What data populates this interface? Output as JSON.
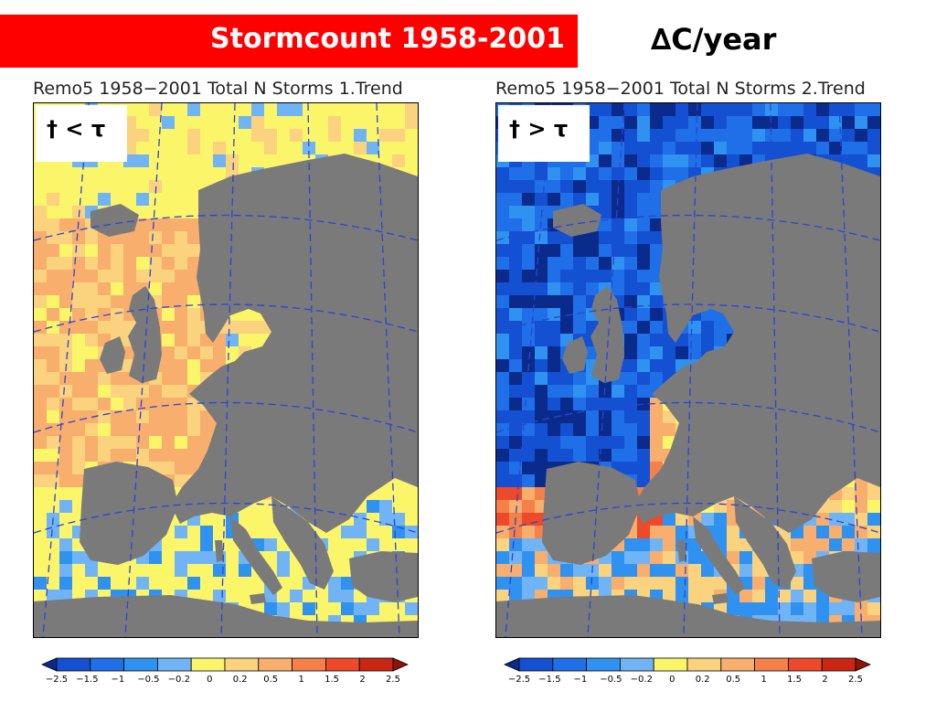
{
  "slide": {
    "title": "Stormcount 1958-2001",
    "unit": "∆C/year",
    "title_bg_color": "#ff0000"
  },
  "panels": [
    {
      "title": "Remo5  1958−2001  Total N Storms  1.Trend",
      "label": "† < τ",
      "dominant_trend": "positive-weak"
    },
    {
      "title": "Remo5  1958−2001  Total N Storms  2.Trend",
      "label": "† > τ",
      "dominant_trend": "negative-north"
    }
  ],
  "colorbar": {
    "ticks": [
      "−2.5",
      "−1.5",
      "−1",
      "−0.5",
      "−0.2",
      "0",
      "0.2",
      "0.5",
      "1",
      "1.5",
      "2",
      "2.5"
    ],
    "colors": [
      "#0a2a8c",
      "#1450d2",
      "#1f6fe8",
      "#2f92f0",
      "#70b4f6",
      "#fbf56a",
      "#fbd27e",
      "#f8ae6c",
      "#f5804a",
      "#ec4a2b",
      "#c92712",
      "#8f1408"
    ]
  },
  "map_colors": {
    "land": "#7a7a7a",
    "grid": "#2a44d8"
  }
}
